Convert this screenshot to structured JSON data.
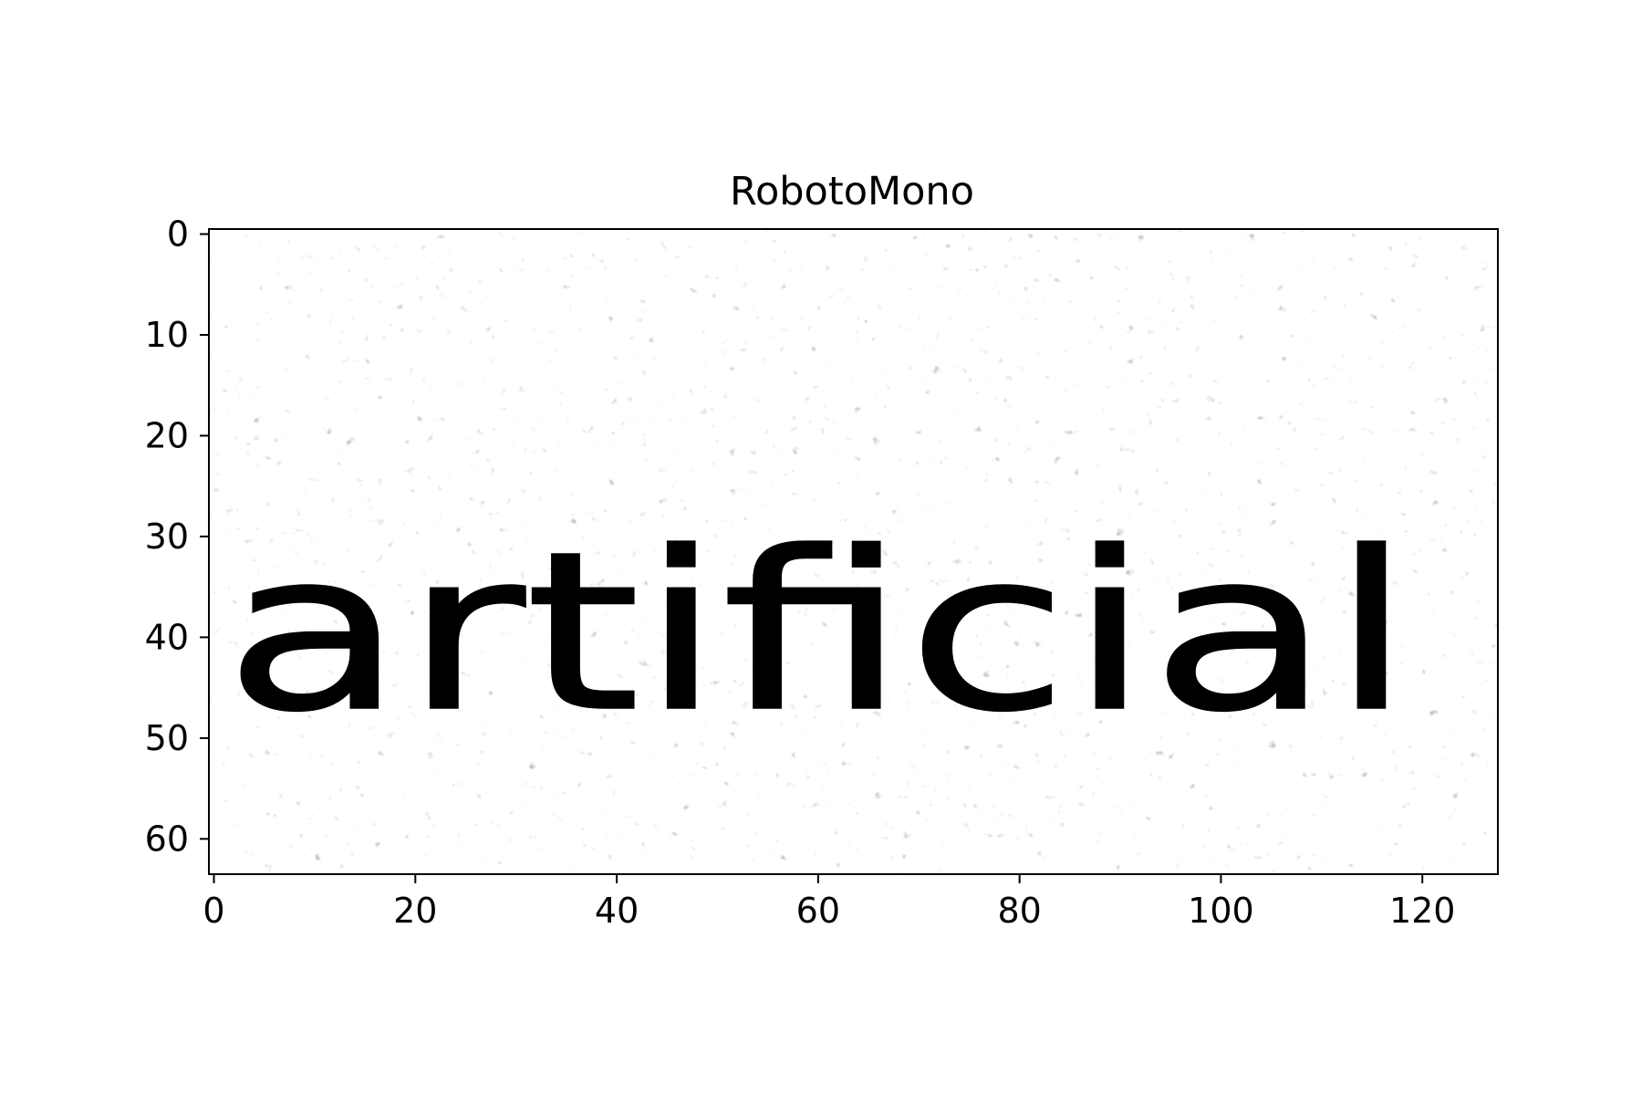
{
  "chart_data": {
    "type": "heatmap",
    "title": "RobotoMono",
    "image_text": "artificial",
    "image_size": {
      "width": 128,
      "height": 64
    },
    "colormap": "gray",
    "xlim": [
      -0.5,
      127.5
    ],
    "ylim": [
      63.5,
      -0.5
    ],
    "x_ticks": [
      0,
      20,
      40,
      60,
      80,
      100,
      120
    ],
    "y_ticks": [
      0,
      10,
      20,
      30,
      40,
      50,
      60
    ],
    "x_tick_labels": [
      "0",
      "20",
      "40",
      "60",
      "80",
      "100",
      "120"
    ],
    "y_tick_labels": [
      "0",
      "10",
      "20",
      "30",
      "40",
      "50",
      "60"
    ],
    "text_baseline_row": 47,
    "text_x_range": [
      1,
      119
    ],
    "grid": false,
    "colors": {
      "ink": "#000000",
      "background": "#ffffff",
      "noise": "#d0d0d0",
      "axes": "#000000"
    }
  }
}
